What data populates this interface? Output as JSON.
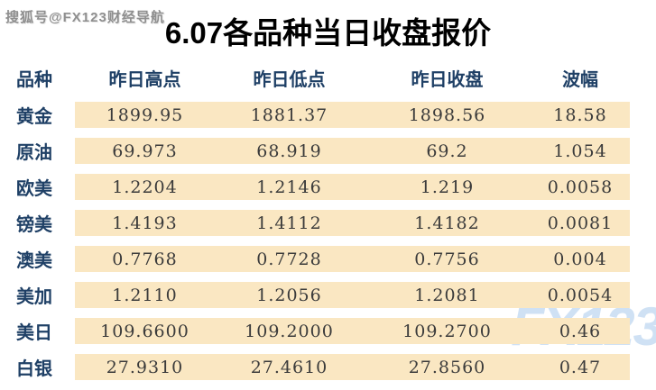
{
  "page": {
    "watermark_top": "搜狐号@FX123财经导航",
    "watermark_bottom": "FX123",
    "title": "6.07各品种当日收盘报价"
  },
  "table": {
    "columns": [
      "品种",
      "昨日高点",
      "昨日低点",
      "昨日收盘",
      "波幅"
    ],
    "rows": [
      {
        "label": "黄金",
        "high": "1899.95",
        "low": "1881.37",
        "close": "1898.56",
        "range": "18.58"
      },
      {
        "label": "原油",
        "high": "69.973",
        "low": "68.919",
        "close": "69.2",
        "range": "1.054"
      },
      {
        "label": "欧美",
        "high": "1.2204",
        "low": "1.2146",
        "close": "1.219",
        "range": "0.0058"
      },
      {
        "label": "镑美",
        "high": "1.4193",
        "low": "1.4112",
        "close": "1.4182",
        "range": "0.0081"
      },
      {
        "label": "澳美",
        "high": "0.7768",
        "low": "0.7728",
        "close": "0.7756",
        "range": "0.004"
      },
      {
        "label": "美加",
        "high": "1.2110",
        "low": "1.2056",
        "close": "1.2081",
        "range": "0.0054"
      },
      {
        "label": "美日",
        "high": "109.6600",
        "low": "109.2000",
        "close": "109.2700",
        "range": "0.46"
      },
      {
        "label": "白银",
        "high": "27.9310",
        "low": "27.4610",
        "close": "27.8560",
        "range": "0.47"
      }
    ]
  },
  "chart_data": {
    "type": "table",
    "title": "6.07各品种当日收盘报价",
    "columns": [
      "品种",
      "昨日高点",
      "昨日低点",
      "昨日收盘",
      "波幅"
    ],
    "rows": [
      [
        "黄金",
        1899.95,
        1881.37,
        1898.56,
        18.58
      ],
      [
        "原油",
        69.973,
        68.919,
        69.2,
        1.054
      ],
      [
        "欧美",
        1.2204,
        1.2146,
        1.219,
        0.0058
      ],
      [
        "镑美",
        1.4193,
        1.4112,
        1.4182,
        0.0081
      ],
      [
        "澳美",
        0.7768,
        0.7728,
        0.7756,
        0.004
      ],
      [
        "美加",
        1.211,
        1.2056,
        1.2081,
        0.0054
      ],
      [
        "美日",
        109.66,
        109.2,
        109.27,
        0.46
      ],
      [
        "白银",
        27.931,
        27.461,
        27.856,
        0.47
      ]
    ]
  },
  "colors": {
    "row_bg": "#fae7c2",
    "header_text": "#1f4066",
    "number_text": "#3b3b3b",
    "title_text": "#000000",
    "watermark_gray": "#8f8f8f",
    "watermark_blue": "#cfe1f4"
  }
}
